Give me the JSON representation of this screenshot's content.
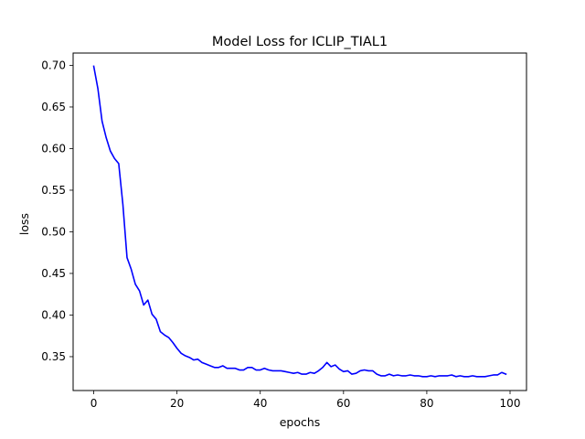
{
  "chart_data": {
    "type": "line",
    "title": "Model Loss for ICLIP_TIAL1",
    "xlabel": "epochs",
    "ylabel": "loss",
    "xlim": [
      -4.95,
      103.95
    ],
    "ylim": [
      0.3093,
      0.7148
    ],
    "xticks": [
      0,
      20,
      40,
      60,
      80,
      100
    ],
    "yticks": [
      0.35,
      0.4,
      0.45,
      0.5,
      0.55,
      0.6,
      0.65,
      0.7
    ],
    "ytick_labels": [
      "0.35",
      "0.40",
      "0.45",
      "0.50",
      "0.55",
      "0.60",
      "0.65",
      "0.70"
    ],
    "grid": false,
    "legend": false,
    "series": [
      {
        "color": "#0000ff",
        "x": [
          0,
          1,
          2,
          3,
          4,
          5,
          6,
          7,
          8,
          9,
          10,
          11,
          12,
          13,
          14,
          15,
          16,
          17,
          18,
          19,
          20,
          21,
          22,
          23,
          24,
          25,
          26,
          27,
          28,
          29,
          30,
          31,
          32,
          33,
          34,
          35,
          36,
          37,
          38,
          39,
          40,
          41,
          42,
          43,
          44,
          45,
          46,
          47,
          48,
          49,
          50,
          51,
          52,
          53,
          54,
          55,
          56,
          57,
          58,
          59,
          60,
          61,
          62,
          63,
          64,
          65,
          66,
          67,
          68,
          69,
          70,
          71,
          72,
          73,
          74,
          75,
          76,
          77,
          78,
          79,
          80,
          81,
          82,
          83,
          84,
          85,
          86,
          87,
          88,
          89,
          90,
          91,
          92,
          93,
          94,
          95,
          96,
          97,
          98,
          99
        ],
        "values": [
          0.699,
          0.672,
          0.633,
          0.613,
          0.597,
          0.588,
          0.582,
          0.533,
          0.469,
          0.455,
          0.437,
          0.429,
          0.412,
          0.418,
          0.401,
          0.395,
          0.38,
          0.376,
          0.373,
          0.367,
          0.36,
          0.354,
          0.351,
          0.349,
          0.346,
          0.347,
          0.343,
          0.341,
          0.339,
          0.337,
          0.337,
          0.339,
          0.336,
          0.336,
          0.336,
          0.334,
          0.334,
          0.337,
          0.337,
          0.334,
          0.334,
          0.336,
          0.334,
          0.333,
          0.333,
          0.333,
          0.332,
          0.331,
          0.33,
          0.331,
          0.329,
          0.329,
          0.331,
          0.33,
          0.333,
          0.337,
          0.343,
          0.338,
          0.34,
          0.335,
          0.332,
          0.333,
          0.329,
          0.33,
          0.333,
          0.334,
          0.333,
          0.333,
          0.329,
          0.327,
          0.327,
          0.329,
          0.327,
          0.328,
          0.327,
          0.327,
          0.328,
          0.327,
          0.327,
          0.326,
          0.326,
          0.327,
          0.326,
          0.327,
          0.327,
          0.327,
          0.328,
          0.326,
          0.327,
          0.326,
          0.326,
          0.327,
          0.326,
          0.326,
          0.326,
          0.327,
          0.328,
          0.328,
          0.331,
          0.329
        ]
      }
    ]
  }
}
